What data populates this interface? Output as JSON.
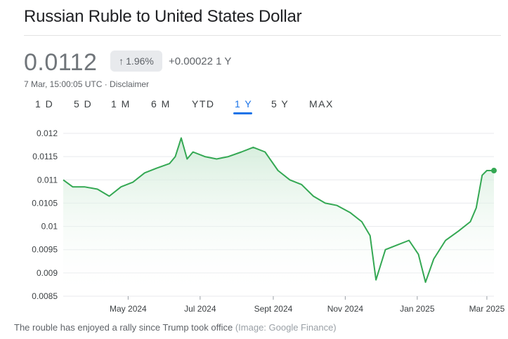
{
  "header": {
    "title": "Russian Ruble to United States Dollar"
  },
  "quote": {
    "price": "0.0112",
    "change_percent": "1.96%",
    "change_abs": "+0.00022 1 Y",
    "timestamp": "7 Mar, 15:00:05 UTC · Disclaimer"
  },
  "icons": {
    "change_arrow": "up-arrow-icon"
  },
  "tabs": [
    {
      "label": "1 D"
    },
    {
      "label": "5 D"
    },
    {
      "label": "1 M"
    },
    {
      "label": "6 M"
    },
    {
      "label": "YTD"
    },
    {
      "label": "1 Y",
      "active": true
    },
    {
      "label": "5 Y"
    },
    {
      "label": "MAX"
    }
  ],
  "colors": {
    "line": "#34a853",
    "accent": "#1a73e8",
    "fill_top": "#ceead6"
  },
  "caption": {
    "text": "The rouble has enjoyed a rally since Trump took office",
    "credit": "(Image: Google Finance)"
  },
  "chart_data": {
    "type": "area",
    "title": "",
    "xlabel": "",
    "ylabel": "",
    "ylim": [
      0.0085,
      0.012
    ],
    "y_ticks": [
      0.012,
      0.0115,
      0.011,
      0.0105,
      0.01,
      0.0095,
      0.009,
      0.0085
    ],
    "y_tick_labels": [
      "0.012",
      "0.0115",
      "0.011",
      "0.0105",
      "0.01",
      "0.0095",
      "0.009",
      "0.0085"
    ],
    "x_range": [
      "2024-03-07",
      "2025-03-07"
    ],
    "x_ticks": [
      "2024-05-01",
      "2024-07-01",
      "2024-09-01",
      "2024-11-01",
      "2025-01-01",
      "2025-03-01"
    ],
    "x_tick_labels": [
      "May 2024",
      "Jul 2024",
      "Sept 2024",
      "Nov 2024",
      "Jan 2025",
      "Mar 2025"
    ],
    "grid": true,
    "series": [
      {
        "x": [
          "2024-03-07",
          "2024-03-15",
          "2024-03-25",
          "2024-04-05",
          "2024-04-15",
          "2024-04-25",
          "2024-05-05",
          "2024-05-15",
          "2024-05-25",
          "2024-06-05",
          "2024-06-10",
          "2024-06-15",
          "2024-06-20",
          "2024-06-25",
          "2024-07-05",
          "2024-07-15",
          "2024-07-25",
          "2024-08-05",
          "2024-08-15",
          "2024-08-25",
          "2024-09-05",
          "2024-09-15",
          "2024-09-25",
          "2024-10-05",
          "2024-10-15",
          "2024-10-25",
          "2024-11-05",
          "2024-11-15",
          "2024-11-22",
          "2024-11-27",
          "2024-12-05",
          "2024-12-15",
          "2024-12-25",
          "2025-01-02",
          "2025-01-08",
          "2025-01-15",
          "2025-01-25",
          "2025-02-05",
          "2025-02-15",
          "2025-02-20",
          "2025-02-25",
          "2025-03-01",
          "2025-03-07"
        ],
        "values": [
          0.011,
          0.01085,
          0.01085,
          0.0108,
          0.01065,
          0.01085,
          0.01095,
          0.01115,
          0.01125,
          0.01135,
          0.0115,
          0.0119,
          0.01145,
          0.0116,
          0.0115,
          0.01145,
          0.0115,
          0.0116,
          0.0117,
          0.0116,
          0.0112,
          0.011,
          0.0109,
          0.01065,
          0.0105,
          0.01045,
          0.0103,
          0.0101,
          0.0098,
          0.00885,
          0.0095,
          0.0096,
          0.0097,
          0.0094,
          0.0088,
          0.0093,
          0.0097,
          0.0099,
          0.0101,
          0.0104,
          0.0111,
          0.0112,
          0.0112
        ]
      }
    ]
  }
}
